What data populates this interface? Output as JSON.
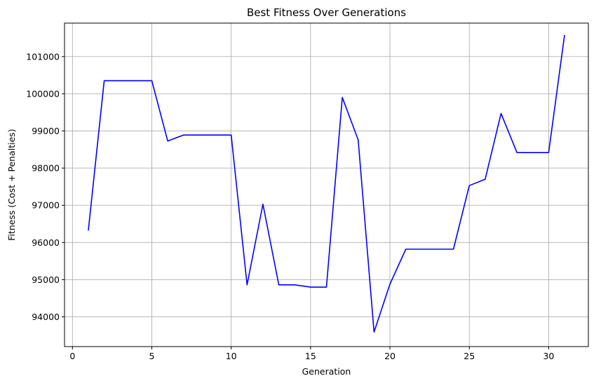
{
  "chart_data": {
    "type": "line",
    "title": "Best Fitness Over Generations",
    "xlabel": "Generation",
    "ylabel": "Fitness (Cost + Penalties)",
    "xlim": [
      -0.5,
      32.5
    ],
    "ylim": [
      93200,
      101900
    ],
    "xticks": [
      0,
      5,
      10,
      15,
      20,
      25,
      30
    ],
    "yticks": [
      94000,
      95000,
      96000,
      97000,
      98000,
      99000,
      100000,
      101000
    ],
    "grid": true,
    "legend": "none",
    "series": [
      {
        "color": "#0000ff",
        "x": [
          1,
          2,
          3,
          4,
          5,
          6,
          7,
          8,
          9,
          10,
          11,
          12,
          13,
          14,
          15,
          16,
          17,
          18,
          19,
          20,
          21,
          22,
          23,
          24,
          25,
          26,
          27,
          28,
          29,
          30,
          31
        ],
        "y": [
          96320,
          100350,
          100350,
          100350,
          100350,
          98730,
          98890,
          98890,
          98890,
          98890,
          94860,
          97030,
          94860,
          94860,
          94800,
          94800,
          99900,
          98760,
          93590,
          94880,
          95820,
          95820,
          95820,
          95820,
          97530,
          97700,
          99470,
          98420,
          98420,
          98420,
          101580
        ]
      }
    ]
  }
}
